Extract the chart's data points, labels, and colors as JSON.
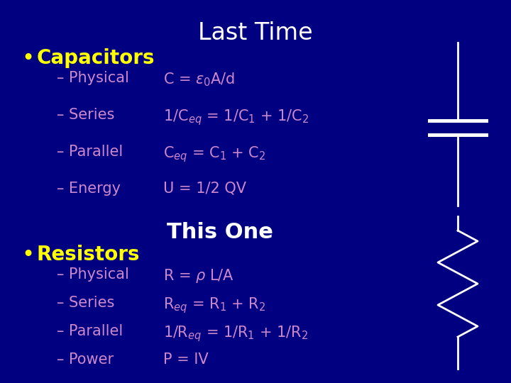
{
  "background_color": "#000080",
  "title": "Last Time",
  "title_color": "#ffffff",
  "title_fontsize": 24,
  "subtitle": "This One",
  "subtitle_color": "#ffffff",
  "subtitle_fontsize": 22,
  "bullet_color": "#ffff00",
  "bullet1": "Capacitors",
  "bullet2": "Resistors",
  "bullet_fontsize": 20,
  "sub_color": "#cc88cc",
  "sub_fontsize": 15,
  "eq_color": "#cc88cc",
  "eq_fontsize": 15,
  "cap_subs": [
    "– Physical",
    "– Series",
    "– Parallel",
    "– Energy"
  ],
  "res_subs": [
    "– Physical",
    "– Series",
    "– Parallel",
    "– Power"
  ],
  "circuit_color": "#ffffff"
}
